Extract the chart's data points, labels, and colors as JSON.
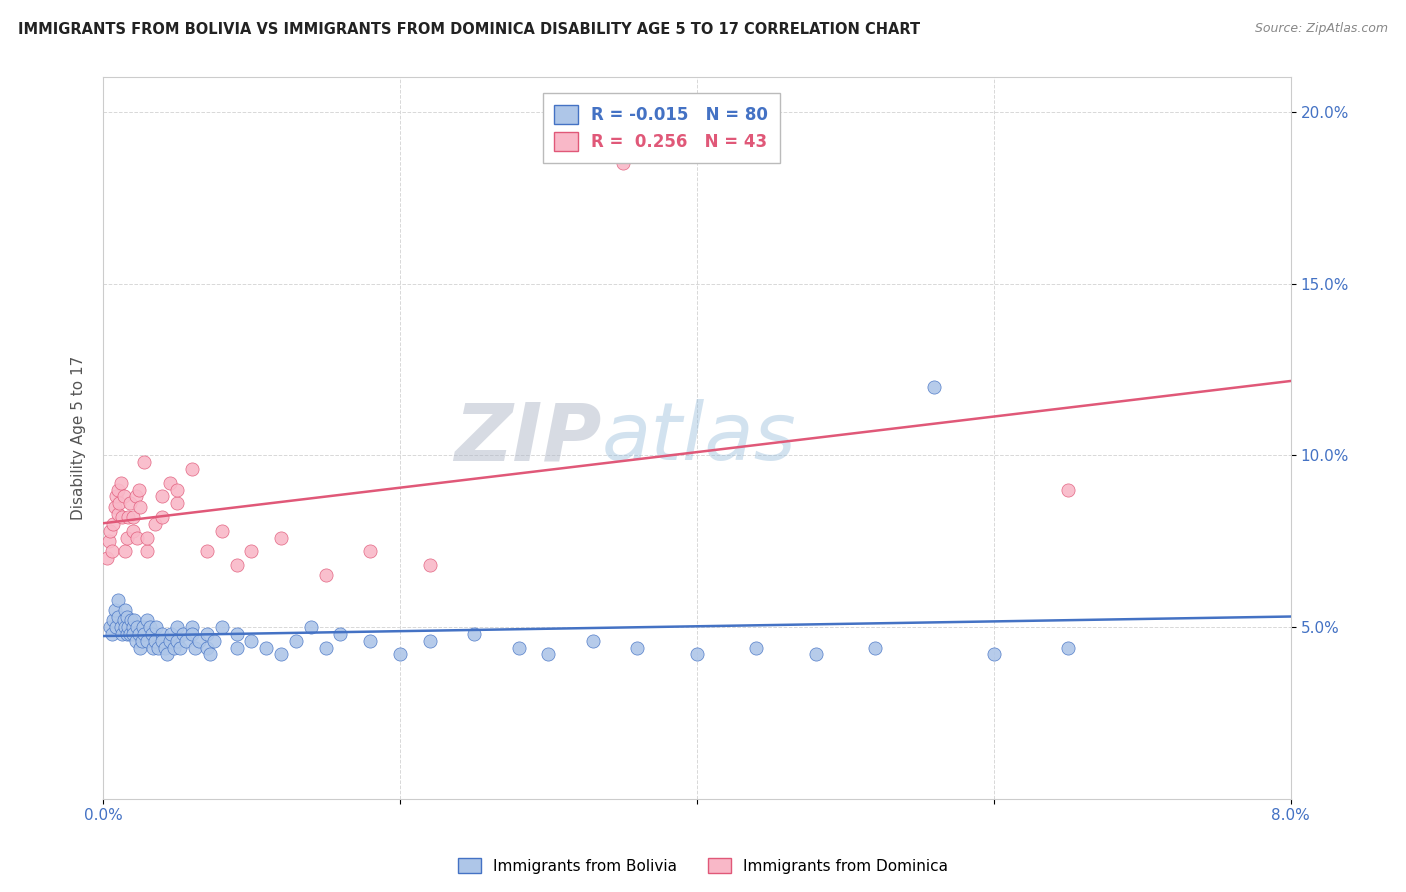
{
  "title": "IMMIGRANTS FROM BOLIVIA VS IMMIGRANTS FROM DOMINICA DISABILITY AGE 5 TO 17 CORRELATION CHART",
  "source": "Source: ZipAtlas.com",
  "ylabel": "Disability Age 5 to 17",
  "x_min": 0.0,
  "x_max": 0.08,
  "y_min": 0.0,
  "y_max": 0.21,
  "x_ticks": [
    0.0,
    0.02,
    0.04,
    0.06,
    0.08
  ],
  "x_tick_labels": [
    "0.0%",
    "",
    "",
    "",
    "8.0%"
  ],
  "y_ticks": [
    0.05,
    0.1,
    0.15,
    0.2
  ],
  "y_tick_labels": [
    "5.0%",
    "10.0%",
    "15.0%",
    "20.0%"
  ],
  "bolivia_color": "#aec6e8",
  "dominica_color": "#f9b8c8",
  "bolivia_line_color": "#4472c4",
  "dominica_line_color": "#e05878",
  "legend_r_bolivia": "-0.015",
  "legend_n_bolivia": "80",
  "legend_r_dominica": "0.256",
  "legend_n_dominica": "43",
  "watermark_zip": "ZIP",
  "watermark_atlas": "atlas",
  "background_color": "#ffffff",
  "grid_color": "#d8d8d8",
  "bolivia_x": [
    0.0005,
    0.0006,
    0.0007,
    0.0008,
    0.0009,
    0.001,
    0.001,
    0.0012,
    0.0013,
    0.0014,
    0.0015,
    0.0015,
    0.0016,
    0.0016,
    0.0017,
    0.0018,
    0.0019,
    0.002,
    0.002,
    0.0021,
    0.0022,
    0.0023,
    0.0024,
    0.0025,
    0.0026,
    0.0027,
    0.0028,
    0.003,
    0.003,
    0.0032,
    0.0033,
    0.0034,
    0.0035,
    0.0036,
    0.0037,
    0.004,
    0.004,
    0.0042,
    0.0043,
    0.0045,
    0.0046,
    0.0048,
    0.005,
    0.005,
    0.0052,
    0.0054,
    0.0056,
    0.006,
    0.006,
    0.0062,
    0.0065,
    0.007,
    0.007,
    0.0072,
    0.0075,
    0.008,
    0.009,
    0.009,
    0.01,
    0.011,
    0.012,
    0.013,
    0.014,
    0.015,
    0.016,
    0.018,
    0.02,
    0.022,
    0.025,
    0.028,
    0.03,
    0.033,
    0.036,
    0.04,
    0.044,
    0.048,
    0.052,
    0.056,
    0.06,
    0.065
  ],
  "bolivia_y": [
    0.05,
    0.048,
    0.052,
    0.055,
    0.05,
    0.053,
    0.058,
    0.05,
    0.048,
    0.052,
    0.05,
    0.055,
    0.048,
    0.053,
    0.05,
    0.048,
    0.052,
    0.05,
    0.048,
    0.052,
    0.046,
    0.05,
    0.048,
    0.044,
    0.046,
    0.05,
    0.048,
    0.052,
    0.046,
    0.05,
    0.048,
    0.044,
    0.046,
    0.05,
    0.044,
    0.048,
    0.046,
    0.044,
    0.042,
    0.046,
    0.048,
    0.044,
    0.046,
    0.05,
    0.044,
    0.048,
    0.046,
    0.05,
    0.048,
    0.044,
    0.046,
    0.048,
    0.044,
    0.042,
    0.046,
    0.05,
    0.048,
    0.044,
    0.046,
    0.044,
    0.042,
    0.046,
    0.05,
    0.044,
    0.048,
    0.046,
    0.042,
    0.046,
    0.048,
    0.044,
    0.042,
    0.046,
    0.044,
    0.042,
    0.044,
    0.042,
    0.044,
    0.12,
    0.042,
    0.044
  ],
  "dominica_x": [
    0.0003,
    0.0004,
    0.0005,
    0.0006,
    0.0007,
    0.0008,
    0.0009,
    0.001,
    0.001,
    0.0011,
    0.0012,
    0.0013,
    0.0014,
    0.0015,
    0.0016,
    0.0017,
    0.0018,
    0.002,
    0.002,
    0.0022,
    0.0023,
    0.0024,
    0.0025,
    0.0028,
    0.003,
    0.003,
    0.0035,
    0.004,
    0.004,
    0.0045,
    0.005,
    0.005,
    0.006,
    0.007,
    0.008,
    0.009,
    0.01,
    0.012,
    0.015,
    0.018,
    0.022,
    0.065,
    0.035
  ],
  "dominica_y": [
    0.07,
    0.075,
    0.078,
    0.072,
    0.08,
    0.085,
    0.088,
    0.083,
    0.09,
    0.086,
    0.092,
    0.082,
    0.088,
    0.072,
    0.076,
    0.082,
    0.086,
    0.078,
    0.082,
    0.088,
    0.076,
    0.09,
    0.085,
    0.098,
    0.072,
    0.076,
    0.08,
    0.082,
    0.088,
    0.092,
    0.086,
    0.09,
    0.096,
    0.072,
    0.078,
    0.068,
    0.072,
    0.076,
    0.065,
    0.072,
    0.068,
    0.09,
    0.185
  ]
}
